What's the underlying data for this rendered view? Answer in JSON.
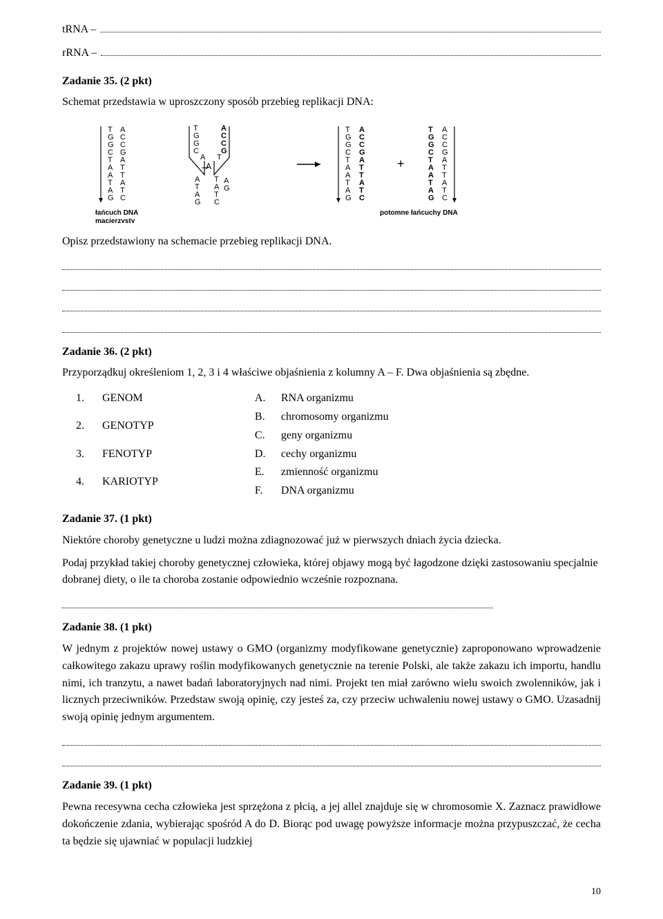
{
  "pre_rows": [
    {
      "prefix": "tRNA –"
    },
    {
      "prefix": "rRNA –"
    }
  ],
  "tasks": {
    "t35": {
      "heading": "Zadanie 35. (2 pkt)",
      "intro": "Schemat przedstawia w uproszczony sposób przebieg replikacji DNA:",
      "instruction": "Opisz przedstawiony na schemacie przebieg replikacji DNA."
    },
    "t36": {
      "heading": "Zadanie 36. (2 pkt)",
      "intro": "Przyporządkuj określeniom 1, 2, 3 i 4 właściwe objaśnienia z kolumny A – F.  Dwa objaśnienia są zbędne."
    },
    "t37": {
      "heading": "Zadanie 37. (1 pkt)",
      "p1": "Niektóre choroby genetyczne u ludzi można zdiagnozować już w pierwszych dniach  życia dziecka.",
      "p2": "Podaj przykład takiej choroby genetycznej człowieka, której objawy mogą być łagodzone dzięki zastosowaniu specjalnie dobranej diety, o ile ta choroba zostanie odpowiednio wcześnie rozpoznana."
    },
    "t38": {
      "heading": "Zadanie 38. (1 pkt)",
      "p1": "W jednym z projektów nowej ustawy o GMO (organizmy modyfikowane genetycznie) zaproponowano wprowadzenie całkowitego zakazu uprawy roślin modyfikowanych genetycznie na terenie Polski, ale także zakazu ich importu, handlu nimi, ich tranzytu, a nawet badań laboratoryjnych nad nimi. Projekt ten miał zarówno wielu swoich zwolenników, jak i licznych przeciwników.  Przedstaw swoją opinię, czy jesteś za, czy przeciw uchwaleniu nowej ustawy o GMO.  Uzasadnij swoją opinię jednym argumentem."
    },
    "t39": {
      "heading": "Zadanie 39. (1 pkt)",
      "p1": "Pewna recesywna cecha człowieka jest sprzężona z płcią, a jej allel znajduje się w chromosomie X. Zaznacz prawidłowe dokończenie zdania, wybierając spośród A do D. Biorąc pod uwagę powyższe informacje można przypuszczać, że cecha ta będzie się ujawniać w populacji ludzkiej"
    }
  },
  "matching": {
    "left": [
      {
        "num": "1.",
        "term": "GENOM"
      },
      {
        "num": "2.",
        "term": "GENOTYP"
      },
      {
        "num": "3.",
        "term": "FENOTYP"
      },
      {
        "num": "4.",
        "term": "KARIOTYP"
      }
    ],
    "right": [
      {
        "num": "A.",
        "term": "RNA organizmu"
      },
      {
        "num": "B.",
        "term": "chromosomy organizmu"
      },
      {
        "num": "C.",
        "term": "geny organizmu"
      },
      {
        "num": "D.",
        "term": "cechy organizmu"
      },
      {
        "num": "E.",
        "term": "zmienność organizmu"
      },
      {
        "num": "F.",
        "term": "DNA organizmu"
      }
    ]
  },
  "diagram": {
    "caption_left": "łańcuch DNA\nmacierzysty",
    "caption_right": "potomne łańcuchy DNA",
    "strand1": [
      "T",
      "G",
      "G",
      "C",
      "T",
      "A",
      "A",
      "T",
      "A",
      "G"
    ],
    "strand2": [
      "A",
      "C",
      "C",
      "G",
      "A",
      "T",
      "T",
      "A",
      "T",
      "C"
    ],
    "fork_left_top": [
      "T",
      "G",
      "G",
      "C"
    ],
    "fork_right_top": [
      "A",
      "C",
      "C",
      "G"
    ],
    "fork_left_bottom_A": [
      "A",
      "T",
      "A",
      "G"
    ],
    "fork_left_bottom_B": [
      "T",
      "A",
      "T",
      "C"
    ],
    "fork_new_left": [
      "A",
      "T"
    ],
    "fork_new_right": [
      "A",
      "G"
    ],
    "bold_result_left": [
      "A",
      "C",
      "C",
      "G",
      "A",
      "T",
      "T",
      "A",
      "T",
      "C"
    ],
    "bold_result_right": [
      "T",
      "G",
      "G",
      "C",
      "T",
      "A",
      "A",
      "T",
      "A",
      "G"
    ],
    "colors": {
      "text": "#000000",
      "bg": "#ffffff",
      "line": "#000000"
    },
    "font_family": "Arial, sans-serif",
    "font_size": 11
  },
  "page_number": "10"
}
